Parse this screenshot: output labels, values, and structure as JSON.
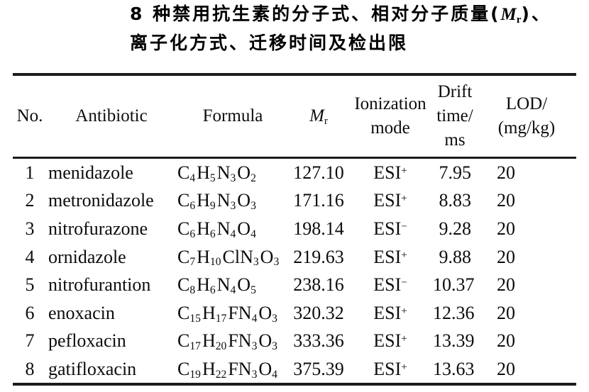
{
  "page": {
    "background_color": "#ffffff",
    "text_color": "#0d0d0d",
    "rule_color": "#1c1c1c"
  },
  "title": {
    "line1_prefix": "8 种禁用抗生素的分子式、相对分子质量(",
    "mr_base": "M",
    "mr_sub": "r",
    "line1_suffix": ")、",
    "line2": "离子化方式、迁移时间及检出限"
  },
  "table": {
    "headers": {
      "no": "No.",
      "antibiotic": "Antibiotic",
      "formula": "Formula",
      "mr_base": "M",
      "mr_sub": "r",
      "ionization_line1": "Ionization",
      "ionization_line2": "mode",
      "drift_line1": "Drift",
      "drift_line2": "time/",
      "drift_line3": "ms",
      "lod_line1": "LOD/",
      "lod_line2": "(mg/kg)"
    },
    "rows": [
      {
        "no": "1",
        "antibiotic": "menidazole",
        "formula": "C4H5N3O2",
        "mr": "127.10",
        "esi": "ESI",
        "esi_sign": "+",
        "drift": "7.95",
        "lod": "20"
      },
      {
        "no": "2",
        "antibiotic": "metronidazole",
        "formula": "C6H9N3O3",
        "mr": "171.16",
        "esi": "ESI",
        "esi_sign": "+",
        "drift": "8.83",
        "lod": "20"
      },
      {
        "no": "3",
        "antibiotic": "nitrofurazone",
        "formula": "C6H6N4O4",
        "mr": "198.14",
        "esi": "ESI",
        "esi_sign": "−",
        "drift": "9.28",
        "lod": "20"
      },
      {
        "no": "4",
        "antibiotic": "ornidazole",
        "formula": "C7H10ClN3O3",
        "mr": "219.63",
        "esi": "ESI",
        "esi_sign": "+",
        "drift": "9.88",
        "lod": "20"
      },
      {
        "no": "5",
        "antibiotic": "nitrofurantion",
        "formula": "C8H6N4O5",
        "mr": "238.16",
        "esi": "ESI",
        "esi_sign": "−",
        "drift": "10.37",
        "lod": "20"
      },
      {
        "no": "6",
        "antibiotic": "enoxacin",
        "formula": "C15H17FN4O3",
        "mr": "320.32",
        "esi": "ESI",
        "esi_sign": "+",
        "drift": "12.36",
        "lod": "20"
      },
      {
        "no": "7",
        "antibiotic": "pefloxacin",
        "formula": "C17H20FN3O3",
        "mr": "333.36",
        "esi": "ESI",
        "esi_sign": "+",
        "drift": "13.39",
        "lod": "20"
      },
      {
        "no": "8",
        "antibiotic": "gatifloxacin",
        "formula": "C19H22FN3O4",
        "mr": "375.39",
        "esi": "ESI",
        "esi_sign": "+",
        "drift": "13.63",
        "lod": "20"
      }
    ]
  }
}
